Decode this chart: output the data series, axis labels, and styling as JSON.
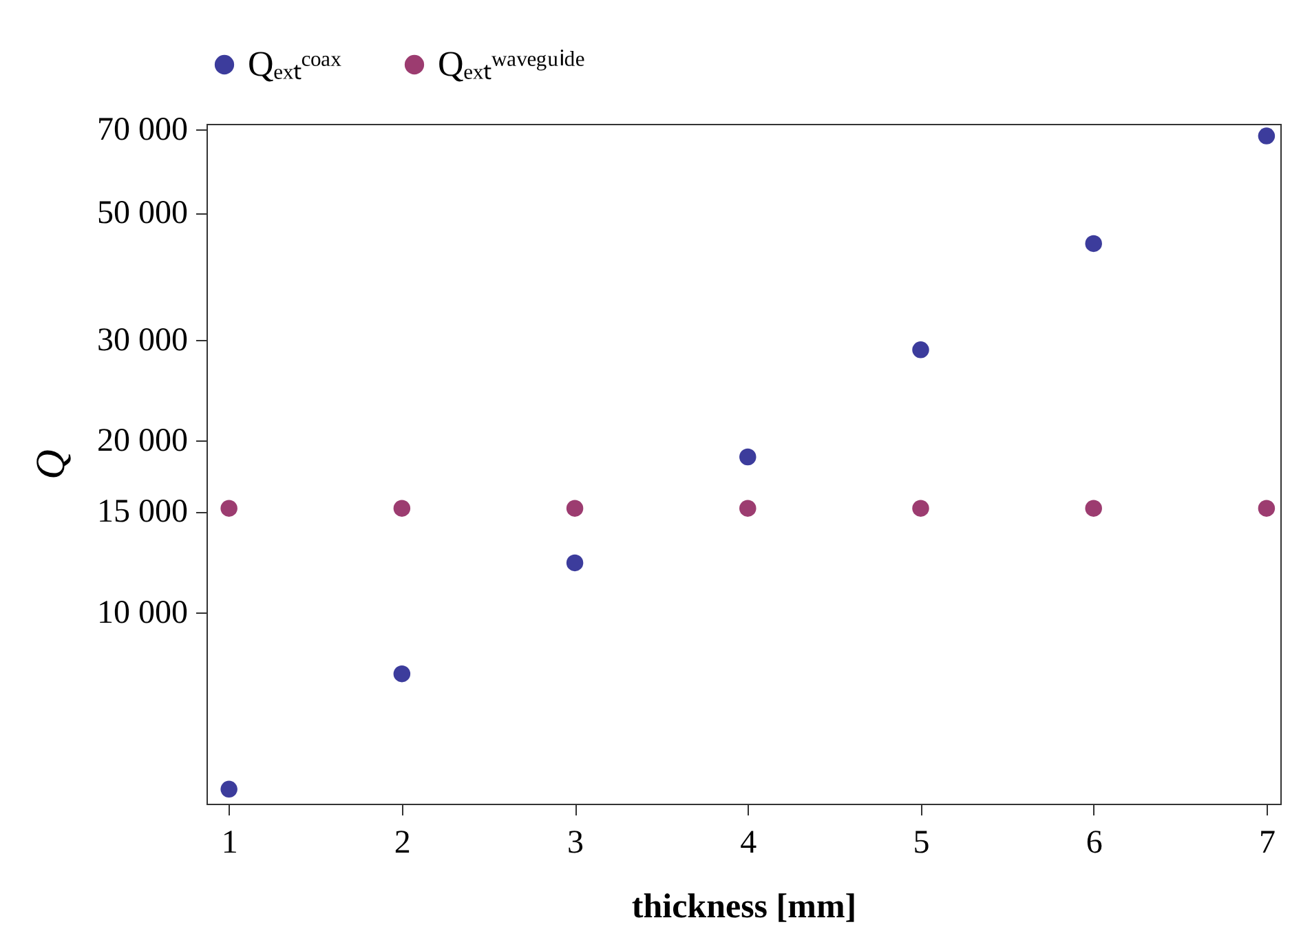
{
  "chart_data": {
    "type": "scatter",
    "xlabel": "thickness [mm]",
    "ylabel": "Q",
    "x": [
      1,
      2,
      3,
      4,
      5,
      6,
      7
    ],
    "series": [
      {
        "name": "Qₑₓₜᶜᵒᵃˣ",
        "color": "#3c3c9c",
        "values": [
          4900,
          7800,
          12200,
          18700,
          28800,
          44200,
          68200
        ]
      },
      {
        "name": "Qₑₓₜʷᵃᵛᵉᵍᵘⁱᵈᵉ",
        "color": "#9c3c70",
        "values": [
          15200,
          15200,
          15200,
          15200,
          15200,
          15200,
          15200
        ]
      }
    ],
    "xlim": [
      0.87,
      7.08
    ],
    "xticks": [
      1,
      2,
      3,
      4,
      5,
      6,
      7
    ],
    "log": "y",
    "ylim": [
      4620,
      71600
    ],
    "yticks": [
      {
        "value": 10000,
        "label": "10 000"
      },
      {
        "value": 15000,
        "label": "15 000"
      },
      {
        "value": 20000,
        "label": "20 000"
      },
      {
        "value": 30000,
        "label": "30 000"
      },
      {
        "value": 50000,
        "label": "50 000"
      },
      {
        "value": 70000,
        "label": "70 000"
      }
    ],
    "grid": false,
    "legend": "top",
    "marker": "circle"
  }
}
